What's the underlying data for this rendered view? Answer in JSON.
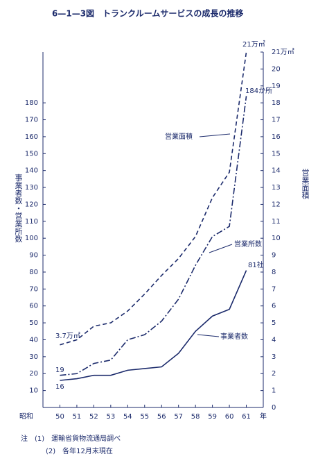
{
  "chart_data": {
    "type": "line",
    "title": "6—1—3図　トランクルームサービスの成長の推移",
    "y_label": "事業者数・営業所数",
    "y2_label": "営業面積",
    "x_prefix_label": "昭和",
    "x_unit_label": "年",
    "x": [
      50,
      51,
      52,
      53,
      54,
      55,
      56,
      57,
      58,
      59,
      60,
      61
    ],
    "xlim": [
      49,
      62
    ],
    "xticks": [
      50,
      51,
      52,
      53,
      54,
      55,
      56,
      57,
      58,
      59,
      60,
      61
    ],
    "ylim": [
      0,
      210
    ],
    "yticks": [
      10,
      20,
      30,
      40,
      50,
      60,
      70,
      80,
      90,
      100,
      110,
      120,
      130,
      140,
      150,
      160,
      170,
      180
    ],
    "y2lim": [
      0,
      21
    ],
    "y2ticks": [
      0,
      1,
      2,
      3,
      4,
      5,
      6,
      7,
      8,
      9,
      10,
      11,
      12,
      13,
      14,
      15,
      16,
      17,
      18,
      19,
      20,
      {
        "value": 21,
        "label": "21万㎡"
      }
    ],
    "series": [
      {
        "name": "事業者数",
        "color": "#1b2a6b",
        "style": "solid",
        "values": [
          16,
          17,
          19,
          19,
          22,
          23,
          24,
          32,
          45,
          54,
          58,
          81
        ]
      },
      {
        "name": "営業所数",
        "color": "#1b2a6b",
        "style": "dashdot",
        "values": [
          19,
          20,
          26,
          28,
          40,
          43,
          51,
          64,
          84,
          101,
          107,
          184
        ]
      },
      {
        "name": "営業面積",
        "color": "#1b2a6b",
        "style": "dashed",
        "axis": "y2",
        "values": [
          3.7,
          4.0,
          4.8,
          5.0,
          5.7,
          6.7,
          7.8,
          8.8,
          10.1,
          12.4,
          13.9,
          21
        ]
      }
    ],
    "annotations": [
      "3.7万㎡",
      "19",
      "16",
      "81社",
      "184か所",
      "21万㎡"
    ],
    "notes": [
      "注　(1)　運輸省貨物流通局調べ",
      "(2)　各年12月末現在"
    ]
  }
}
